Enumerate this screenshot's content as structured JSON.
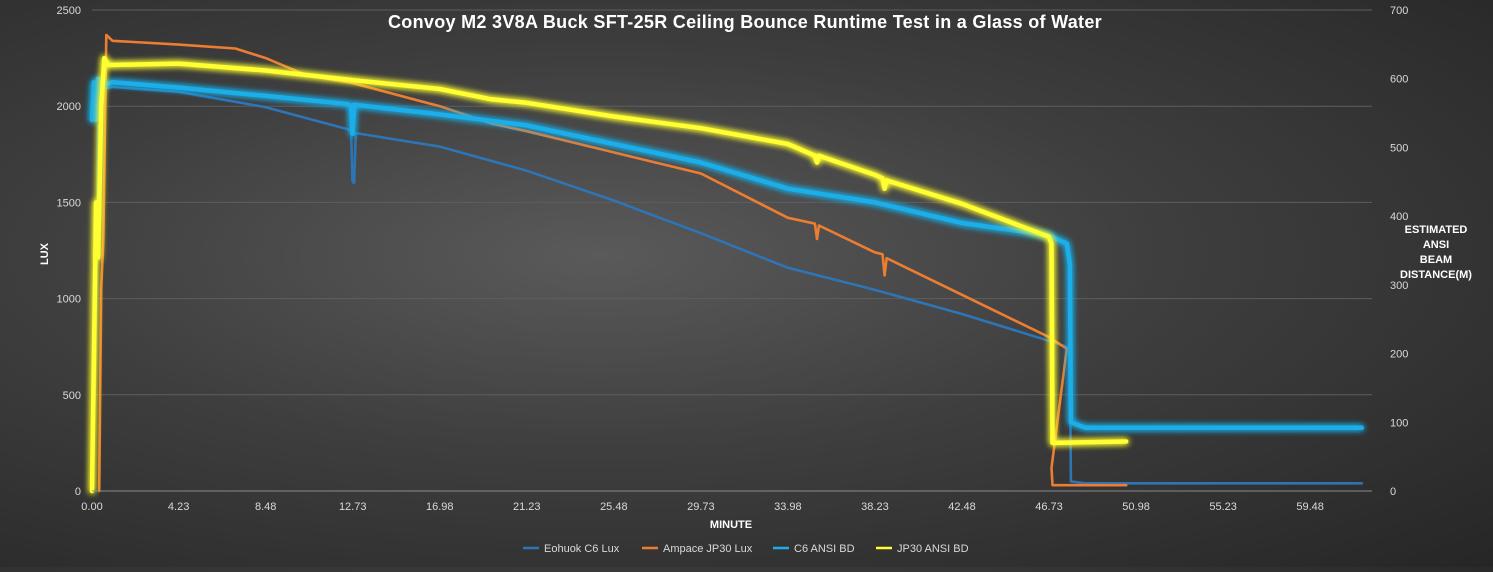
{
  "chart_data": {
    "type": "line",
    "title": "Convoy  M2  3V8A  Buck  SFT-25R  Ceiling  Bounce  Runtime  Test  in  a  Glass  of  Water",
    "xlabel": "MINUTE",
    "ylabel": "LUX",
    "y2label": [
      "ESTIMATED",
      "ANSI",
      "BEAM",
      "DISTANCE(M)"
    ],
    "xlim": [
      0,
      62.5
    ],
    "ylim": [
      0,
      2500
    ],
    "y2lim": [
      0,
      700
    ],
    "grid": true,
    "legend_position": "bottom",
    "x_ticks": [
      "0.00",
      "4.23",
      "8.48",
      "12.73",
      "16.98",
      "21.23",
      "25.48",
      "29.73",
      "33.98",
      "38.23",
      "42.48",
      "46.73",
      "50.98",
      "55.23",
      "59.48"
    ],
    "y_ticks": [
      "0",
      "500",
      "1000",
      "1500",
      "2000",
      "2500"
    ],
    "y2_ticks": [
      "0",
      "100",
      "200",
      "300",
      "400",
      "500",
      "600",
      "700"
    ],
    "series": [
      {
        "name": "Eohuok C6 Lux",
        "color": "#2e75b6",
        "axis": "left",
        "glow": false,
        "points": [
          [
            0,
            0
          ],
          [
            0.15,
            600
          ],
          [
            0.3,
            1900
          ],
          [
            0.4,
            1400
          ],
          [
            0.55,
            2090
          ],
          [
            1.0,
            2100
          ],
          [
            4.23,
            2075
          ],
          [
            8.48,
            1995
          ],
          [
            12.5,
            1880
          ],
          [
            12.65,
            1870
          ],
          [
            12.72,
            1610
          ],
          [
            12.8,
            1600
          ],
          [
            12.88,
            1860
          ],
          [
            16.98,
            1790
          ],
          [
            21.23,
            1665
          ],
          [
            25.48,
            1510
          ],
          [
            29.73,
            1340
          ],
          [
            33.98,
            1160
          ],
          [
            38.23,
            1045
          ],
          [
            42.48,
            920
          ],
          [
            46.73,
            780
          ],
          [
            47.6,
            750
          ],
          [
            47.75,
            700
          ],
          [
            47.8,
            50
          ],
          [
            48.5,
            40
          ],
          [
            55.23,
            40
          ],
          [
            62,
            40
          ]
        ]
      },
      {
        "name": "Ampace JP30 Lux",
        "color": "#ed7d31",
        "axis": "left",
        "glow": false,
        "points": [
          [
            0.35,
            0
          ],
          [
            0.45,
            1050
          ],
          [
            0.55,
            1300
          ],
          [
            0.7,
            2370
          ],
          [
            1.0,
            2340
          ],
          [
            4.23,
            2320
          ],
          [
            7.0,
            2300
          ],
          [
            8.48,
            2250
          ],
          [
            10.5,
            2160
          ],
          [
            12.73,
            2120
          ],
          [
            16.98,
            2000
          ],
          [
            19.5,
            1910
          ],
          [
            21.23,
            1870
          ],
          [
            25.48,
            1760
          ],
          [
            29.73,
            1650
          ],
          [
            33.98,
            1420
          ],
          [
            35.3,
            1390
          ],
          [
            35.4,
            1310
          ],
          [
            35.5,
            1380
          ],
          [
            38.23,
            1240
          ],
          [
            38.6,
            1230
          ],
          [
            38.7,
            1120
          ],
          [
            38.8,
            1210
          ],
          [
            42.48,
            1020
          ],
          [
            46.73,
            800
          ],
          [
            47.3,
            760
          ],
          [
            47.6,
            740
          ],
          [
            46.85,
            120
          ],
          [
            46.9,
            30
          ],
          [
            50.5,
            30
          ]
        ]
      },
      {
        "name": "C6 ANSI BD",
        "color": "#1aaee8",
        "axis": "right",
        "glow": true,
        "points": [
          [
            0,
            540
          ],
          [
            0.1,
            595
          ],
          [
            0.2,
            540
          ],
          [
            0.3,
            600
          ],
          [
            0.5,
            590
          ],
          [
            1.0,
            595
          ],
          [
            4.23,
            587
          ],
          [
            8.48,
            575
          ],
          [
            12.5,
            563
          ],
          [
            12.65,
            560
          ],
          [
            12.72,
            520
          ],
          [
            12.8,
            562
          ],
          [
            16.98,
            548
          ],
          [
            21.23,
            532
          ],
          [
            25.48,
            505
          ],
          [
            29.73,
            478
          ],
          [
            33.98,
            440
          ],
          [
            38.23,
            420
          ],
          [
            42.48,
            390
          ],
          [
            46.73,
            372
          ],
          [
            47.6,
            360
          ],
          [
            47.75,
            330
          ],
          [
            47.8,
            100
          ],
          [
            48.5,
            92
          ],
          [
            55.23,
            92
          ],
          [
            62,
            92
          ]
        ]
      },
      {
        "name": "JP30 ANSI BD",
        "color": "#ffff33",
        "axis": "right",
        "glow": true,
        "points": [
          [
            0,
            0
          ],
          [
            0.2,
            420
          ],
          [
            0.3,
            340
          ],
          [
            0.45,
            560
          ],
          [
            0.6,
            630
          ],
          [
            0.8,
            620
          ],
          [
            4.23,
            622
          ],
          [
            8.48,
            612
          ],
          [
            12.73,
            598
          ],
          [
            16.98,
            585
          ],
          [
            19.5,
            570
          ],
          [
            21.23,
            565
          ],
          [
            25.48,
            545
          ],
          [
            29.73,
            528
          ],
          [
            33.98,
            505
          ],
          [
            35.3,
            488
          ],
          [
            35.4,
            478
          ],
          [
            35.5,
            488
          ],
          [
            38.23,
            460
          ],
          [
            38.6,
            455
          ],
          [
            38.7,
            440
          ],
          [
            38.8,
            452
          ],
          [
            42.48,
            418
          ],
          [
            46.73,
            370
          ],
          [
            46.85,
            360
          ],
          [
            46.9,
            70
          ],
          [
            50.5,
            72
          ]
        ]
      }
    ]
  }
}
